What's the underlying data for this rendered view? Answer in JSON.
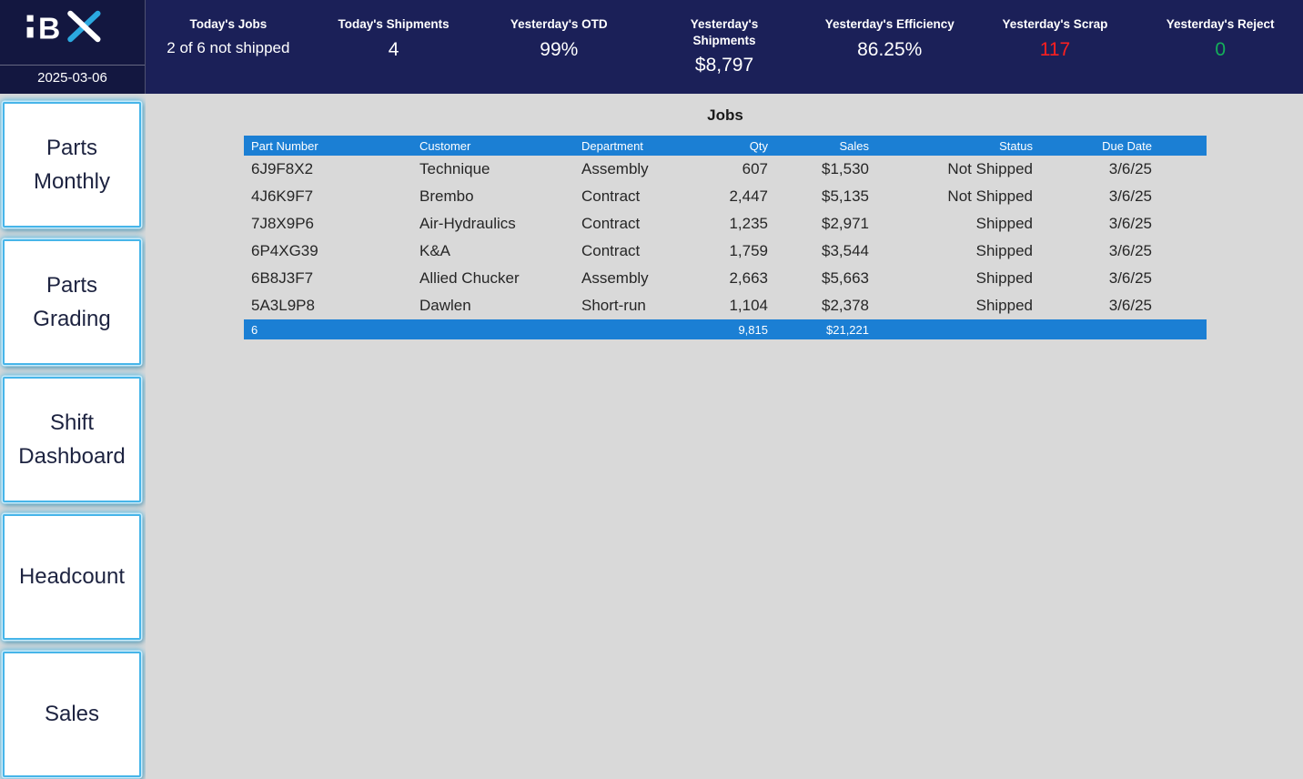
{
  "header": {
    "date": "2025-03-06",
    "kpis": [
      {
        "label": "Today's Jobs",
        "value": "2 of 6 not shipped"
      },
      {
        "label": "Today's Shipments",
        "value": "4"
      },
      {
        "label": "Yesterday's OTD",
        "value": "99%"
      },
      {
        "label": "Yesterday's Shipments",
        "value": "$8,797"
      },
      {
        "label": "Yesterday's Efficiency",
        "value": "86.25%"
      },
      {
        "label": "Yesterday's Scrap",
        "value": "117",
        "value_color": "#ff1f1f"
      },
      {
        "label": "Yesterday's Reject",
        "value": "0",
        "value_color": "#14b05a"
      }
    ]
  },
  "sidebar": {
    "buttons": [
      {
        "label": "Parts Monthly"
      },
      {
        "label": "Parts Grading"
      },
      {
        "label": "Shift Dashboard"
      },
      {
        "label": "Headcount"
      },
      {
        "label": "Sales"
      }
    ]
  },
  "main": {
    "title": "Jobs",
    "table": {
      "columns": [
        "Part Number",
        "Customer",
        "Department",
        "Qty",
        "Sales",
        "Status",
        "Due Date"
      ],
      "rows": [
        [
          "6J9F8X2",
          "Technique",
          "Assembly",
          "607",
          "$1,530",
          "Not Shipped",
          "3/6/25"
        ],
        [
          "4J6K9F7",
          "Brembo",
          "Contract",
          "2,447",
          "$5,135",
          "Not Shipped",
          "3/6/25"
        ],
        [
          "7J8X9P6",
          "Air-Hydraulics",
          "Contract",
          "1,235",
          "$2,971",
          "Shipped",
          "3/6/25"
        ],
        [
          "6P4XG39",
          "K&A",
          "Contract",
          "1,759",
          "$3,544",
          "Shipped",
          "3/6/25"
        ],
        [
          "6B8J3F7",
          "Allied Chucker",
          "Assembly",
          "2,663",
          "$5,663",
          "Shipped",
          "3/6/25"
        ],
        [
          "5A3L9P8",
          "Dawlen",
          "Short-run",
          "1,104",
          "$2,378",
          "Shipped",
          "3/6/25"
        ]
      ],
      "footer": {
        "count": "6",
        "qty_total": "9,815",
        "sales_total": "$21,221"
      }
    }
  },
  "colors": {
    "header_bg": "#1b2058",
    "logo_block_bg": "#131740",
    "table_header_bg": "#1b7fd4",
    "accent_glow": "#2ba9e0",
    "scrap_value": "#ff1f1f",
    "reject_value": "#14b05a",
    "page_bg": "#d9d9d9"
  }
}
